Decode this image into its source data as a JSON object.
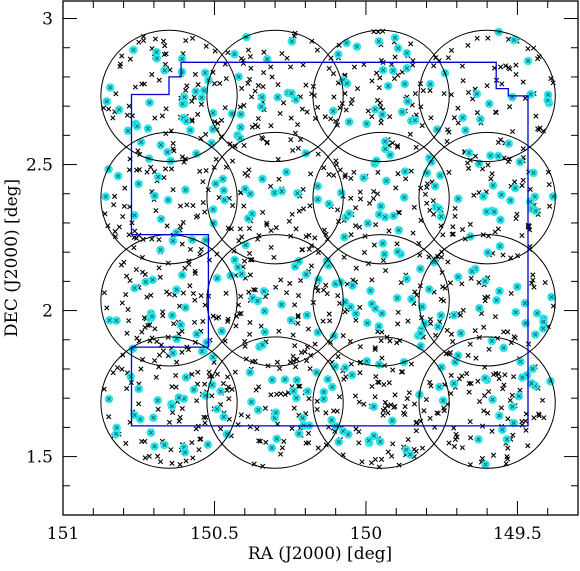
{
  "chart_data": {
    "type": "scatter",
    "title": "",
    "xlabel": "RA (J2000) [deg]",
    "ylabel": "DEC (J2000) [deg]",
    "xlim": [
      151.0,
      149.3
    ],
    "ylim": [
      1.3,
      3.06
    ],
    "x_ticks": [
      {
        "value": 151.0,
        "label": "151"
      },
      {
        "value": 150.5,
        "label": "150.5"
      },
      {
        "value": 150.0,
        "label": "150"
      },
      {
        "value": 149.5,
        "label": "149.5"
      }
    ],
    "y_ticks": [
      {
        "value": 1.5,
        "label": "1.5"
      },
      {
        "value": 2.0,
        "label": "2"
      },
      {
        "value": 2.5,
        "label": "2.5"
      },
      {
        "value": 3.0,
        "label": "3"
      }
    ],
    "grid": false,
    "legend": "none",
    "colors": {
      "frame": "#000000",
      "field_outline": "#0000cc",
      "circle": "#000000",
      "marker_cross": "#000000",
      "highlight": "#2ee6e6",
      "highlight_core": "#1a5f7a"
    },
    "pointings": {
      "radius_deg": 0.225,
      "centers": [
        {
          "ra": 150.65,
          "dec": 1.685
        },
        {
          "ra": 150.3,
          "dec": 1.685
        },
        {
          "ra": 149.95,
          "dec": 1.685
        },
        {
          "ra": 149.6,
          "dec": 1.685
        },
        {
          "ra": 150.65,
          "dec": 2.035
        },
        {
          "ra": 150.3,
          "dec": 2.035
        },
        {
          "ra": 149.95,
          "dec": 2.035
        },
        {
          "ra": 149.6,
          "dec": 2.035
        },
        {
          "ra": 150.65,
          "dec": 2.385
        },
        {
          "ra": 150.3,
          "dec": 2.385
        },
        {
          "ra": 149.95,
          "dec": 2.385
        },
        {
          "ra": 149.6,
          "dec": 2.385
        },
        {
          "ra": 150.65,
          "dec": 2.735
        },
        {
          "ra": 150.3,
          "dec": 2.735
        },
        {
          "ra": 149.95,
          "dec": 2.735
        },
        {
          "ra": 149.6,
          "dec": 2.735
        }
      ]
    },
    "field_outline": [
      [
        150.61,
        2.85
      ],
      [
        149.57,
        2.85
      ],
      [
        149.57,
        2.76
      ],
      [
        149.53,
        2.76
      ],
      [
        149.53,
        2.735
      ],
      [
        149.465,
        2.735
      ],
      [
        149.465,
        1.605
      ],
      [
        150.774,
        1.605
      ],
      [
        150.774,
        1.875
      ],
      [
        150.52,
        1.875
      ],
      [
        150.52,
        2.26
      ],
      [
        150.774,
        2.26
      ],
      [
        150.774,
        2.74
      ],
      [
        150.65,
        2.74
      ],
      [
        150.65,
        2.8
      ],
      [
        150.61,
        2.8
      ],
      [
        150.61,
        2.85
      ]
    ],
    "series": [
      {
        "marker": "cross",
        "density_per_deg2": 500
      },
      {
        "marker": "highlighted",
        "density_per_deg2": 175
      }
    ]
  }
}
